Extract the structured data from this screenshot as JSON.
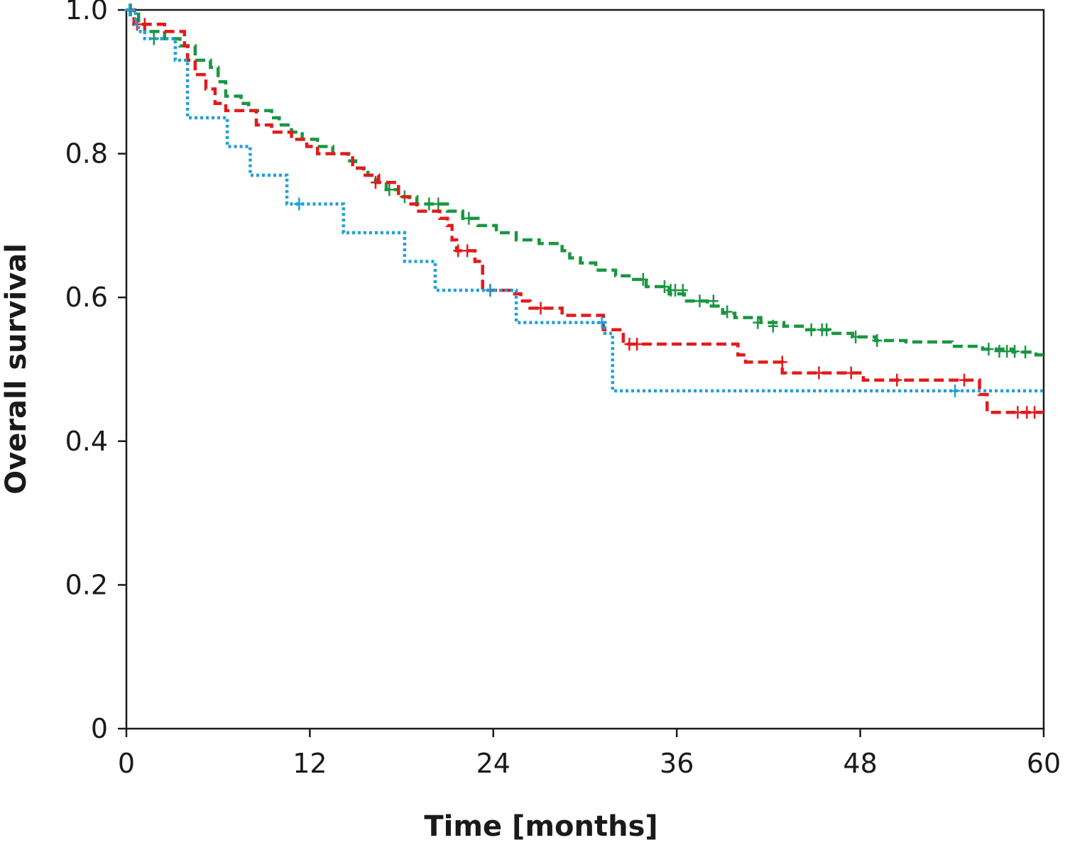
{
  "chart_data": {
    "type": "line",
    "title": "",
    "xlabel": "Time [months]",
    "ylabel": "Overall survival",
    "xlim": [
      0,
      60
    ],
    "ylim": [
      0,
      1.0
    ],
    "xticks": [
      0,
      12,
      24,
      36,
      48,
      60
    ],
    "xtick_labels": [
      "0",
      "12",
      "24",
      "36",
      "48",
      "60"
    ],
    "yticks": [
      0,
      0.2,
      0.4,
      0.6,
      0.8,
      1.0
    ],
    "ytick_labels": [
      "0",
      "0.2",
      "0.4",
      "0.6",
      "0.8",
      "1.0"
    ],
    "grid": false,
    "legend": "none",
    "series": [
      {
        "color": "#1a9641",
        "line_style": "dashed",
        "step": [
          [
            0,
            1.0
          ],
          [
            0.8,
            0.98
          ],
          [
            1.2,
            0.97
          ],
          [
            2.5,
            0.96
          ],
          [
            3.5,
            0.95
          ],
          [
            4.5,
            0.93
          ],
          [
            5.5,
            0.92
          ],
          [
            6,
            0.9
          ],
          [
            6.5,
            0.88
          ],
          [
            7.5,
            0.87
          ],
          [
            8,
            0.86
          ],
          [
            9.5,
            0.85
          ],
          [
            10,
            0.84
          ],
          [
            10.8,
            0.83
          ],
          [
            11.5,
            0.82
          ],
          [
            12.5,
            0.81
          ],
          [
            13.5,
            0.8
          ],
          [
            14.5,
            0.79
          ],
          [
            15,
            0.78
          ],
          [
            15.8,
            0.77
          ],
          [
            16.3,
            0.76
          ],
          [
            17,
            0.75
          ],
          [
            17.8,
            0.74
          ],
          [
            19,
            0.73
          ],
          [
            21,
            0.72
          ],
          [
            22,
            0.71
          ],
          [
            23,
            0.7
          ],
          [
            24.2,
            0.69
          ],
          [
            25.5,
            0.68
          ],
          [
            27,
            0.675
          ],
          [
            28.5,
            0.665
          ],
          [
            29,
            0.655
          ],
          [
            29.7,
            0.648
          ],
          [
            30.7,
            0.638
          ],
          [
            32,
            0.63
          ],
          [
            33,
            0.625
          ],
          [
            34,
            0.615
          ],
          [
            35.5,
            0.605
          ],
          [
            36.5,
            0.595
          ],
          [
            38,
            0.588
          ],
          [
            39,
            0.578
          ],
          [
            39.8,
            0.572
          ],
          [
            41.5,
            0.565
          ],
          [
            43,
            0.56
          ],
          [
            44.5,
            0.555
          ],
          [
            46,
            0.55
          ],
          [
            47.5,
            0.545
          ],
          [
            49,
            0.54
          ],
          [
            51,
            0.538
          ],
          [
            54,
            0.532
          ],
          [
            56,
            0.528
          ],
          [
            58,
            0.524
          ],
          [
            59.5,
            0.52
          ],
          [
            60,
            0.52
          ]
        ],
        "censored": [
          [
            0.3,
            1.0
          ],
          [
            1.8,
            0.96
          ],
          [
            17.2,
            0.75
          ],
          [
            18.2,
            0.74
          ],
          [
            19.8,
            0.73
          ],
          [
            20.4,
            0.73
          ],
          [
            22.4,
            0.71
          ],
          [
            33.8,
            0.625
          ],
          [
            35.2,
            0.615
          ],
          [
            35.6,
            0.61
          ],
          [
            35.9,
            0.61
          ],
          [
            36.4,
            0.61
          ],
          [
            37.5,
            0.595
          ],
          [
            38.4,
            0.595
          ],
          [
            39.3,
            0.58
          ],
          [
            41.3,
            0.565
          ],
          [
            42.3,
            0.56
          ],
          [
            44.8,
            0.555
          ],
          [
            45.5,
            0.555
          ],
          [
            45.8,
            0.555
          ],
          [
            47.7,
            0.545
          ],
          [
            49.1,
            0.54
          ],
          [
            56.4,
            0.528
          ],
          [
            57.1,
            0.525
          ],
          [
            57.6,
            0.525
          ],
          [
            58.1,
            0.525
          ],
          [
            58.8,
            0.524
          ]
        ]
      },
      {
        "color": "#e31a1c",
        "line_style": "dashed",
        "step": [
          [
            0,
            1.0
          ],
          [
            0.5,
            0.98
          ],
          [
            2.5,
            0.97
          ],
          [
            3.8,
            0.95
          ],
          [
            4,
            0.93
          ],
          [
            4.5,
            0.91
          ],
          [
            5.2,
            0.89
          ],
          [
            5.8,
            0.87
          ],
          [
            6.5,
            0.86
          ],
          [
            8.5,
            0.84
          ],
          [
            9.5,
            0.83
          ],
          [
            10.8,
            0.82
          ],
          [
            11.8,
            0.81
          ],
          [
            12.5,
            0.8
          ],
          [
            14.8,
            0.78
          ],
          [
            15.5,
            0.77
          ],
          [
            16.5,
            0.76
          ],
          [
            17.8,
            0.74
          ],
          [
            18.5,
            0.73
          ],
          [
            19,
            0.72
          ],
          [
            20.5,
            0.71
          ],
          [
            21,
            0.7
          ],
          [
            21.3,
            0.68
          ],
          [
            21.6,
            0.665
          ],
          [
            22.8,
            0.65
          ],
          [
            23.3,
            0.61
          ],
          [
            25.4,
            0.605
          ],
          [
            25.8,
            0.595
          ],
          [
            26.4,
            0.585
          ],
          [
            28.5,
            0.575
          ],
          [
            30.5,
            0.575
          ],
          [
            31.2,
            0.555
          ],
          [
            32.5,
            0.535
          ],
          [
            40,
            0.52
          ],
          [
            40.5,
            0.51
          ],
          [
            42.5,
            0.51
          ],
          [
            42.9,
            0.495
          ],
          [
            48.2,
            0.485
          ],
          [
            55.8,
            0.465
          ],
          [
            56.3,
            0.44
          ],
          [
            60,
            0.44
          ]
        ],
        "censored": [
          [
            0.7,
            0.98
          ],
          [
            1.2,
            0.98
          ],
          [
            16.3,
            0.76
          ],
          [
            21.7,
            0.665
          ],
          [
            22.3,
            0.665
          ],
          [
            23.8,
            0.61
          ],
          [
            27.1,
            0.585
          ],
          [
            32.9,
            0.535
          ],
          [
            33.4,
            0.535
          ],
          [
            42.9,
            0.51
          ],
          [
            45.3,
            0.495
          ],
          [
            47.4,
            0.495
          ],
          [
            50.4,
            0.485
          ],
          [
            54.8,
            0.485
          ],
          [
            58.3,
            0.44
          ],
          [
            58.9,
            0.44
          ],
          [
            59.4,
            0.44
          ]
        ]
      },
      {
        "color": "#1f9fdb",
        "line_style": "dotted",
        "step": [
          [
            0,
            1.0
          ],
          [
            0.6,
            0.98
          ],
          [
            0.8,
            0.97
          ],
          [
            1.2,
            0.96
          ],
          [
            3.2,
            0.93
          ],
          [
            4,
            0.85
          ],
          [
            6.6,
            0.81
          ],
          [
            8.1,
            0.77
          ],
          [
            10.5,
            0.73
          ],
          [
            14.2,
            0.69
          ],
          [
            18.2,
            0.65
          ],
          [
            20.2,
            0.61
          ],
          [
            25.5,
            0.565
          ],
          [
            31.3,
            0.55
          ],
          [
            31.8,
            0.47
          ],
          [
            60,
            0.47
          ]
        ],
        "censored": [
          [
            0.2,
            1.0
          ],
          [
            11.3,
            0.73
          ],
          [
            23.8,
            0.61
          ],
          [
            31.1,
            0.565
          ],
          [
            54.2,
            0.47
          ]
        ]
      }
    ]
  }
}
